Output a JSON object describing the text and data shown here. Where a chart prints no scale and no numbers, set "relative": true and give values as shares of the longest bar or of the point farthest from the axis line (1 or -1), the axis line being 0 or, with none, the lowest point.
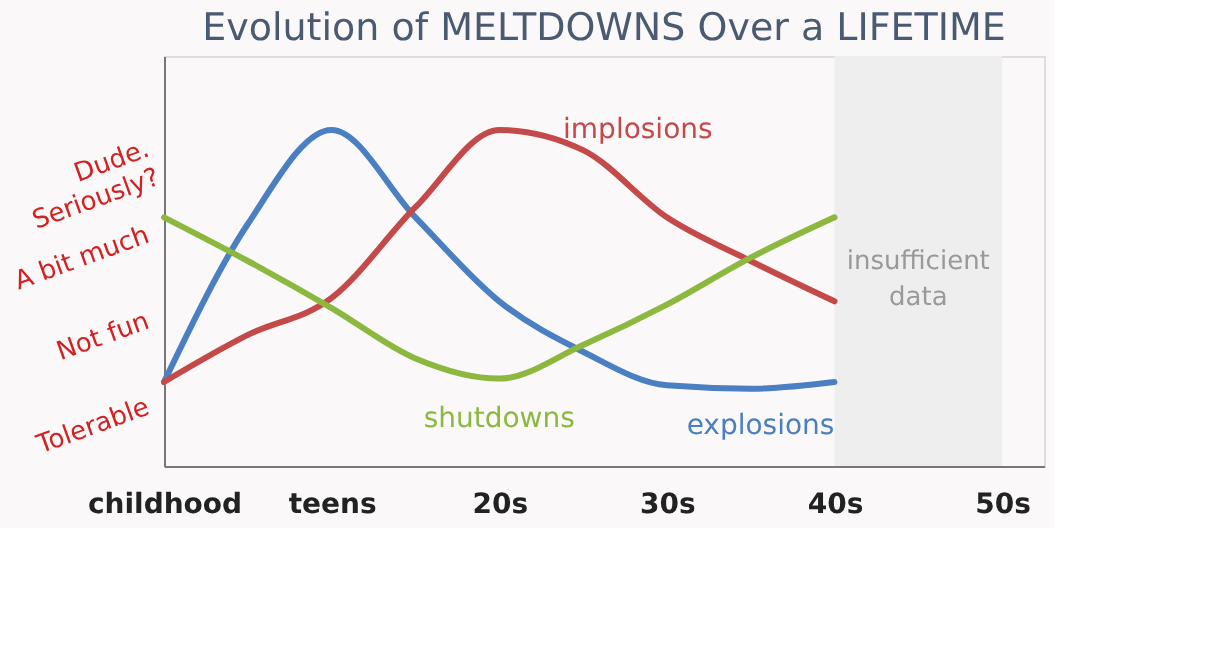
{
  "chart_data": {
    "type": "line",
    "title": "Evolution of MELTDOWNS Over a LIFETIME",
    "categories": [
      "childhood",
      null,
      "teens",
      null,
      "20s",
      null,
      "30s",
      null,
      "40s",
      null,
      "50s"
    ],
    "relative": true,
    "series": [
      {
        "name": "explosions",
        "color": "#4a7fc1",
        "values": [
          0.25,
          0.72,
          1.0,
          0.74,
          0.49,
          0.34,
          0.24,
          0.23,
          0.25,
          null,
          null
        ]
      },
      {
        "name": "implosions",
        "color": "#c44a4a",
        "values": [
          0.25,
          0.39,
          0.5,
          0.77,
          1.0,
          0.94,
          0.74,
          0.61,
          0.49,
          null,
          null
        ]
      },
      {
        "name": "shutdowns",
        "color": "#8db83f",
        "values": [
          0.74,
          0.61,
          0.47,
          0.32,
          0.26,
          0.36,
          0.48,
          0.62,
          0.74,
          null,
          null
        ]
      }
    ],
    "annotations": [
      "Tolerable",
      "Not fun",
      "A bit much",
      "Dude. Seriously?"
    ],
    "bands": [
      {
        "axis": "x",
        "from": "40s",
        "to": "50s",
        "label": "insufficient data",
        "color": "#eeeeee"
      }
    ],
    "grid": false,
    "line_style": "solid",
    "marker": "none"
  }
}
